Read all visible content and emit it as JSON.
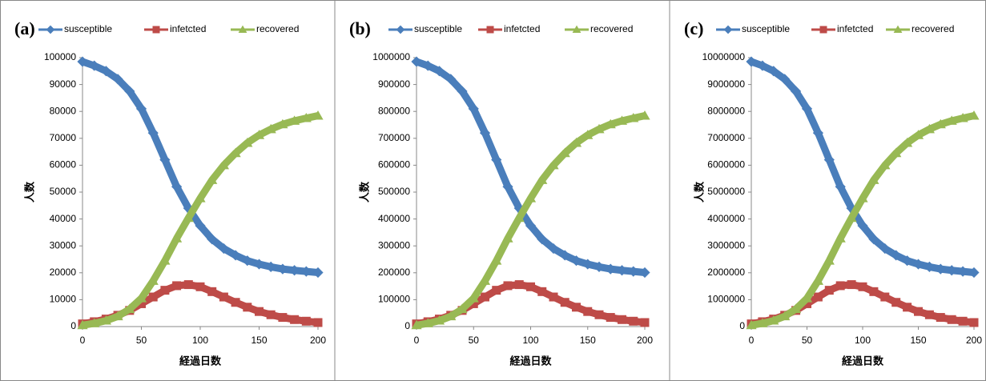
{
  "chart_data": [
    {
      "type": "line",
      "title": "(a)",
      "x_label": "経過日数",
      "y_label": "人数",
      "x": [
        0,
        10,
        20,
        30,
        40,
        50,
        60,
        70,
        80,
        90,
        100,
        110,
        120,
        130,
        140,
        150,
        160,
        170,
        180,
        190,
        200
      ],
      "xlim": [
        0,
        200
      ],
      "xticks": [
        0,
        50,
        100,
        150,
        200
      ],
      "ylim": [
        0,
        100000
      ],
      "yticks": [
        0,
        10000,
        20000,
        30000,
        40000,
        50000,
        60000,
        70000,
        80000,
        90000,
        100000
      ],
      "series": [
        {
          "name": "susceptible",
          "color": "#4a7ebb",
          "marker": "diamond",
          "values": [
            98500,
            97000,
            95000,
            92000,
            87500,
            81000,
            72000,
            62000,
            52000,
            44000,
            37500,
            32500,
            29000,
            26500,
            24500,
            23200,
            22200,
            21400,
            20900,
            20500,
            20100
          ]
        },
        {
          "name": "infetcted",
          "color": "#be4b48",
          "marker": "square",
          "values": [
            1000,
            1800,
            2800,
            4200,
            6000,
            8500,
            11000,
            13500,
            15200,
            15600,
            14800,
            13000,
            11000,
            9000,
            7200,
            5600,
            4400,
            3400,
            2600,
            2000,
            1500
          ]
        },
        {
          "name": "recovered",
          "color": "#98b954",
          "marker": "triangle",
          "values": [
            500,
            1200,
            2200,
            3800,
            6500,
            10500,
            17000,
            24500,
            32800,
            40400,
            47700,
            54500,
            60000,
            64500,
            68300,
            71200,
            73400,
            75200,
            76500,
            77500,
            78400
          ]
        }
      ]
    },
    {
      "type": "line",
      "title": "(b)",
      "x_label": "経過日数",
      "y_label": "人数",
      "x": [
        0,
        10,
        20,
        30,
        40,
        50,
        60,
        70,
        80,
        90,
        100,
        110,
        120,
        130,
        140,
        150,
        160,
        170,
        180,
        190,
        200
      ],
      "xlim": [
        0,
        200
      ],
      "xticks": [
        0,
        50,
        100,
        150,
        200
      ],
      "ylim": [
        0,
        1000000
      ],
      "yticks": [
        0,
        100000,
        200000,
        300000,
        400000,
        500000,
        600000,
        700000,
        800000,
        900000,
        1000000
      ],
      "series": [
        {
          "name": "susceptible",
          "color": "#4a7ebb",
          "marker": "diamond",
          "values": [
            985000,
            970000,
            950000,
            920000,
            875000,
            810000,
            720000,
            620000,
            520000,
            440000,
            375000,
            325000,
            290000,
            265000,
            245000,
            232000,
            222000,
            214000,
            209000,
            205000,
            201000
          ]
        },
        {
          "name": "infetcted",
          "color": "#be4b48",
          "marker": "square",
          "values": [
            10000,
            18000,
            28000,
            42000,
            60000,
            85000,
            110000,
            135000,
            152000,
            156000,
            148000,
            130000,
            110000,
            90000,
            72000,
            56000,
            44000,
            34000,
            26000,
            20000,
            15000
          ]
        },
        {
          "name": "recovered",
          "color": "#98b954",
          "marker": "triangle",
          "values": [
            5000,
            12000,
            22000,
            38000,
            65000,
            105000,
            170000,
            245000,
            328000,
            404000,
            477000,
            545000,
            600000,
            645000,
            683000,
            712000,
            734000,
            752000,
            765000,
            775000,
            784000
          ]
        }
      ]
    },
    {
      "type": "line",
      "title": "(c)",
      "x_label": "経過日数",
      "y_label": "人数",
      "x": [
        0,
        10,
        20,
        30,
        40,
        50,
        60,
        70,
        80,
        90,
        100,
        110,
        120,
        130,
        140,
        150,
        160,
        170,
        180,
        190,
        200
      ],
      "xlim": [
        0,
        200
      ],
      "xticks": [
        0,
        50,
        100,
        150,
        200
      ],
      "ylim": [
        0,
        10000000
      ],
      "yticks": [
        0,
        1000000,
        2000000,
        3000000,
        4000000,
        5000000,
        6000000,
        7000000,
        8000000,
        9000000,
        10000000
      ],
      "series": [
        {
          "name": "susceptible",
          "color": "#4a7ebb",
          "marker": "diamond",
          "values": [
            9850000,
            9700000,
            9500000,
            9200000,
            8750000,
            8100000,
            7200000,
            6200000,
            5200000,
            4400000,
            3750000,
            3250000,
            2900000,
            2650000,
            2450000,
            2320000,
            2220000,
            2140000,
            2090000,
            2050000,
            2010000
          ]
        },
        {
          "name": "infetcted",
          "color": "#be4b48",
          "marker": "square",
          "values": [
            100000,
            180000,
            280000,
            420000,
            600000,
            850000,
            1100000,
            1350000,
            1520000,
            1560000,
            1480000,
            1300000,
            1100000,
            900000,
            720000,
            560000,
            440000,
            340000,
            260000,
            200000,
            150000
          ]
        },
        {
          "name": "recovered",
          "color": "#98b954",
          "marker": "triangle",
          "values": [
            50000,
            120000,
            220000,
            380000,
            650000,
            1050000,
            1700000,
            2450000,
            3280000,
            4040000,
            4770000,
            5450000,
            6000000,
            6450000,
            6830000,
            7120000,
            7340000,
            7520000,
            7650000,
            7750000,
            7840000
          ]
        }
      ]
    }
  ]
}
